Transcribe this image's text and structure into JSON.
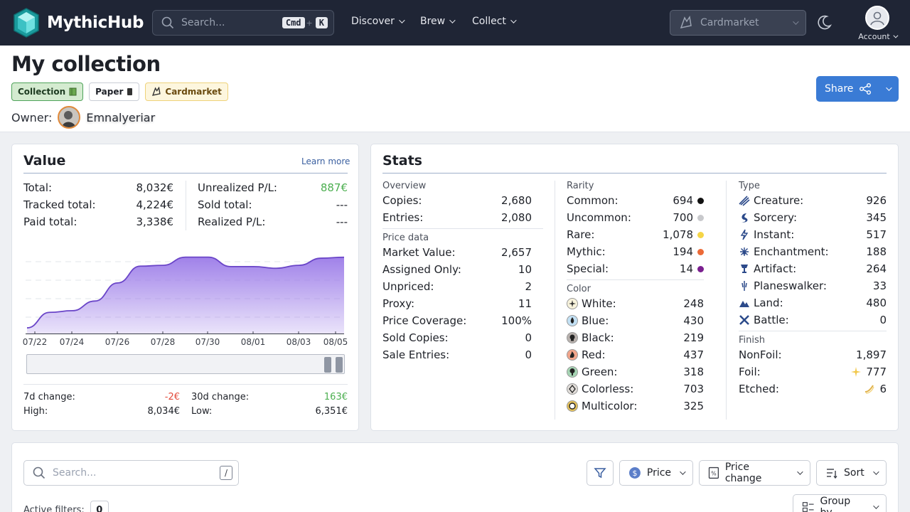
{
  "nav": {
    "logo_text": "MythicHub",
    "search_placeholder": "Search...",
    "kbd_cmd": "Cmd",
    "kbd_plus": "+",
    "kbd_k": "K",
    "links": [
      {
        "label": "Discover"
      },
      {
        "label": "Brew"
      },
      {
        "label": "Collect"
      }
    ],
    "market_select_placeholder": "Cardmarket",
    "account_label": "Account"
  },
  "header": {
    "title": "My collection",
    "tags": [
      {
        "label": "Collection",
        "icon": "book-icon"
      },
      {
        "label": "Paper",
        "icon": "card-icon"
      },
      {
        "label": "Cardmarket",
        "icon": "cardmarket-icon"
      }
    ],
    "owner_label": "Owner:",
    "owner_name": "Emnalyeriar",
    "share_label": "Share"
  },
  "value": {
    "title": "Value",
    "learn_more": "Learn more",
    "rows_left": [
      {
        "label": "Total:",
        "value": "8,032€"
      },
      {
        "label": "Tracked total:",
        "value": "4,224€"
      },
      {
        "label": "Paid total:",
        "value": "3,338€"
      }
    ],
    "rows_right": [
      {
        "label": "Unrealized P/L:",
        "value": "887€"
      },
      {
        "label": "Sold total:",
        "value": "---"
      },
      {
        "label": "Realized P/L:",
        "value": "---"
      }
    ],
    "change_7d_label": "7d change:",
    "change_7d": "-2€",
    "high_label": "High:",
    "high": "8,034€",
    "change_30d_label": "30d change:",
    "change_30d": "163€",
    "low_label": "Low:",
    "low": "6,351€"
  },
  "chart_data": {
    "type": "area",
    "title": "",
    "x_ticks": [
      "07/22",
      "07/24",
      "07/26",
      "07/28",
      "07/30",
      "08/01",
      "08/03",
      "08/05"
    ],
    "x": [
      "07/22",
      "07/23",
      "07/24",
      "07/25",
      "07/26",
      "07/27",
      "07/28",
      "07/29",
      "07/30",
      "07/31",
      "08/01",
      "08/02",
      "08/03",
      "08/04",
      "08/05"
    ],
    "values": [
      6351,
      6720,
      6760,
      6990,
      7420,
      7820,
      7840,
      8034,
      8034,
      7810,
      7810,
      7770,
      7840,
      8010,
      8032
    ],
    "ylim": [
      6200,
      8400
    ],
    "grid": true,
    "color": "#9b7be8"
  },
  "stats": {
    "title": "Stats",
    "overview": {
      "label": "Overview",
      "rows": [
        {
          "label": "Copies:",
          "value": "2,680"
        },
        {
          "label": "Entries:",
          "value": "2,080"
        }
      ]
    },
    "price": {
      "label": "Price data",
      "rows": [
        {
          "label": "Market Value:",
          "value": "2,657"
        },
        {
          "label": "Assigned Only:",
          "value": "10"
        },
        {
          "label": "Unpriced:",
          "value": "2"
        },
        {
          "label": "Proxy:",
          "value": "11"
        },
        {
          "label": "Price Coverage:",
          "value": "100%"
        },
        {
          "label": "Sold Copies:",
          "value": "0"
        },
        {
          "label": "Sale Entries:",
          "value": "0"
        }
      ]
    },
    "rarity": {
      "label": "Rarity",
      "rows": [
        {
          "label": "Common:",
          "value": "694",
          "color": "#111111"
        },
        {
          "label": "Uncommon:",
          "value": "700",
          "color": "#c8c9cc"
        },
        {
          "label": "Rare:",
          "value": "1,078",
          "color": "#f5d547"
        },
        {
          "label": "Mythic:",
          "value": "194",
          "color": "#ec6a37"
        },
        {
          "label": "Special:",
          "value": "14",
          "color": "#7a1f8f"
        }
      ]
    },
    "color": {
      "label": "Color",
      "rows": [
        {
          "label": "White:",
          "value": "248",
          "icon": "white-mana-icon"
        },
        {
          "label": "Blue:",
          "value": "430",
          "icon": "blue-mana-icon"
        },
        {
          "label": "Black:",
          "value": "219",
          "icon": "black-mana-icon"
        },
        {
          "label": "Red:",
          "value": "437",
          "icon": "red-mana-icon"
        },
        {
          "label": "Green:",
          "value": "318",
          "icon": "green-mana-icon"
        },
        {
          "label": "Colorless:",
          "value": "703",
          "icon": "colorless-mana-icon"
        },
        {
          "label": "Multicolor:",
          "value": "325",
          "icon": "multicolor-mana-icon"
        }
      ]
    },
    "type": {
      "label": "Type",
      "rows": [
        {
          "label": "Creature:",
          "value": "926",
          "icon": "creature-icon"
        },
        {
          "label": "Sorcery:",
          "value": "345",
          "icon": "sorcery-icon"
        },
        {
          "label": "Instant:",
          "value": "517",
          "icon": "instant-icon"
        },
        {
          "label": "Enchantment:",
          "value": "188",
          "icon": "enchantment-icon"
        },
        {
          "label": "Artifact:",
          "value": "264",
          "icon": "artifact-icon"
        },
        {
          "label": "Planeswalker:",
          "value": "33",
          "icon": "planeswalker-icon"
        },
        {
          "label": "Land:",
          "value": "480",
          "icon": "land-icon"
        },
        {
          "label": "Battle:",
          "value": "0",
          "icon": "battle-icon"
        }
      ]
    },
    "finish": {
      "label": "Finish",
      "rows": [
        {
          "label": "NonFoil:",
          "value": "1,897"
        },
        {
          "label": "Foil:",
          "value": "777",
          "icon": "sparkle-icon"
        },
        {
          "label": "Etched:",
          "value": "6",
          "icon": "etched-icon"
        }
      ]
    }
  },
  "toolbar": {
    "search_placeholder": "Search...",
    "search_shortcut": "/",
    "price_label": "Price",
    "price_change_label": "Price change",
    "sort_label": "Sort",
    "group_by_label": "Group by",
    "active_filters_label": "Active filters:",
    "active_filters_count": "0"
  }
}
